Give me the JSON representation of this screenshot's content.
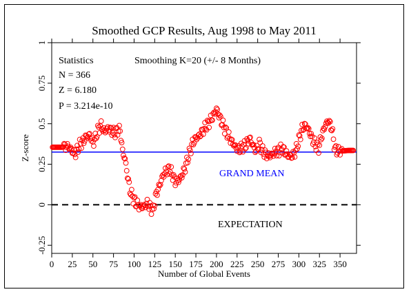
{
  "chart_data": {
    "type": "scatter",
    "title": "Smoothed GCP Results, Aug 1998 to May 2011",
    "xlabel": "Number of Global Events",
    "ylabel": "Z-score",
    "xlim": [
      0,
      370
    ],
    "ylim": [
      -0.3,
      1.0
    ],
    "x_ticks": [
      "0",
      "25",
      "50",
      "75",
      "100",
      "125",
      "150",
      "175",
      "200",
      "225",
      "250",
      "275",
      "300",
      "325",
      "350"
    ],
    "y_ticks": [
      "-0.25",
      "0",
      "0.25",
      "0.5",
      "0.75",
      "1"
    ],
    "grid": false,
    "stats": {
      "heading": "Statistics",
      "n": "N = 366",
      "z": "Z = 6.180",
      "p": "P = 3.214e-10",
      "smoothing": "Smoothing K=20 (+/- 8 Months)"
    },
    "reference_lines": [
      {
        "label": "GRAND MEAN",
        "y": 0.325,
        "color": "#0000ff",
        "style": "solid"
      },
      {
        "label": "EXPECTATION",
        "y": 0.0,
        "color": "#000000",
        "style": "dashed"
      }
    ],
    "marker_color": "#ff0000",
    "profile": [
      [
        1,
        0.355
      ],
      [
        12,
        0.355
      ],
      [
        20,
        0.36
      ],
      [
        24,
        0.34
      ],
      [
        28,
        0.31
      ],
      [
        31,
        0.34
      ],
      [
        34,
        0.37
      ],
      [
        38,
        0.39
      ],
      [
        42,
        0.42
      ],
      [
        46,
        0.43
      ],
      [
        50,
        0.38
      ],
      [
        53,
        0.41
      ],
      [
        56,
        0.46
      ],
      [
        60,
        0.49
      ],
      [
        64,
        0.45
      ],
      [
        68,
        0.47
      ],
      [
        72,
        0.46
      ],
      [
        76,
        0.44
      ],
      [
        80,
        0.46
      ],
      [
        83,
        0.46
      ],
      [
        86,
        0.33
      ],
      [
        89,
        0.28
      ],
      [
        92,
        0.18
      ],
      [
        95,
        0.09
      ],
      [
        98,
        0.05
      ],
      [
        101,
        0.02
      ],
      [
        104,
        0.0
      ],
      [
        108,
        -0.015
      ],
      [
        112,
        -0.01
      ],
      [
        116,
        0.01
      ],
      [
        120,
        -0.02
      ],
      [
        123,
        -0.035
      ],
      [
        127,
        0.07
      ],
      [
        131,
        0.12
      ],
      [
        135,
        0.18
      ],
      [
        139,
        0.21
      ],
      [
        143,
        0.22
      ],
      [
        147,
        0.18
      ],
      [
        150,
        0.14
      ],
      [
        154,
        0.15
      ],
      [
        158,
        0.18
      ],
      [
        162,
        0.23
      ],
      [
        166,
        0.3
      ],
      [
        171,
        0.38
      ],
      [
        175,
        0.41
      ],
      [
        180,
        0.43
      ],
      [
        185,
        0.47
      ],
      [
        190,
        0.5
      ],
      [
        195,
        0.54
      ],
      [
        200,
        0.59
      ],
      [
        204,
        0.54
      ],
      [
        208,
        0.49
      ],
      [
        212,
        0.45
      ],
      [
        216,
        0.41
      ],
      [
        220,
        0.38
      ],
      [
        224,
        0.35
      ],
      [
        228,
        0.34
      ],
      [
        232,
        0.36
      ],
      [
        236,
        0.37
      ],
      [
        240,
        0.41
      ],
      [
        244,
        0.37
      ],
      [
        248,
        0.33
      ],
      [
        252,
        0.38
      ],
      [
        256,
        0.33
      ],
      [
        260,
        0.31
      ],
      [
        264,
        0.3
      ],
      [
        268,
        0.31
      ],
      [
        272,
        0.33
      ],
      [
        276,
        0.33
      ],
      [
        280,
        0.35
      ],
      [
        284,
        0.32
      ],
      [
        288,
        0.3
      ],
      [
        292,
        0.3
      ],
      [
        296,
        0.33
      ],
      [
        300,
        0.4
      ],
      [
        304,
        0.47
      ],
      [
        308,
        0.49
      ],
      [
        312,
        0.46
      ],
      [
        316,
        0.41
      ],
      [
        320,
        0.37
      ],
      [
        324,
        0.35
      ],
      [
        328,
        0.43
      ],
      [
        332,
        0.49
      ],
      [
        336,
        0.52
      ],
      [
        340,
        0.47
      ],
      [
        344,
        0.34
      ],
      [
        348,
        0.33
      ],
      [
        360,
        0.335
      ],
      [
        366,
        0.335
      ]
    ],
    "n_points": 366
  }
}
